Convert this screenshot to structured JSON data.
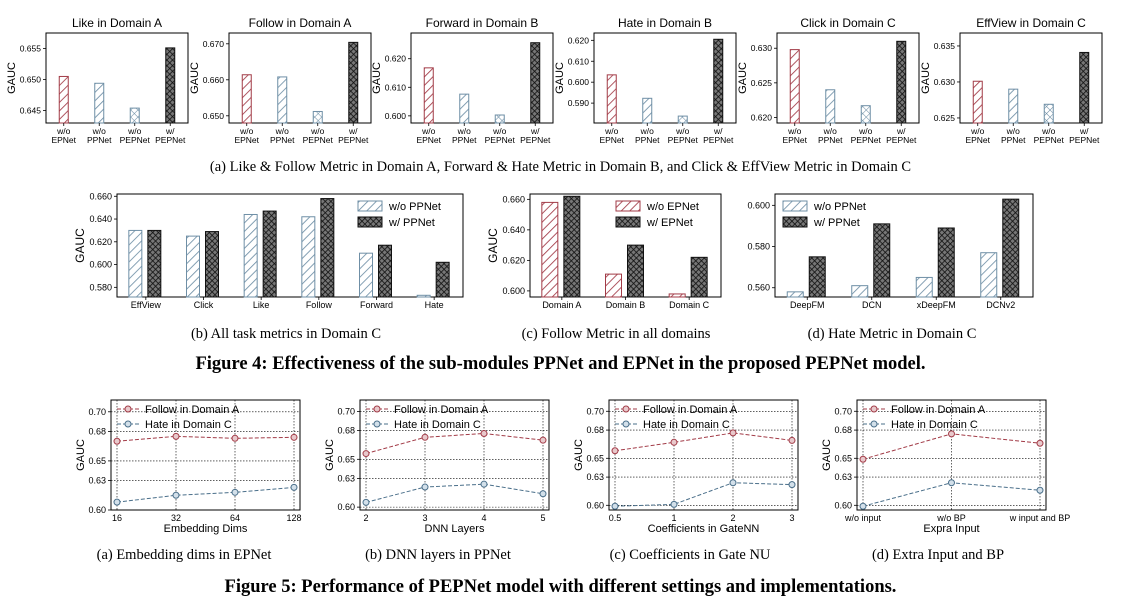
{
  "colors": {
    "red": "#a23b47",
    "blue": "#6f8fa6",
    "dark": "#222222",
    "line_red": "#a23b47",
    "line_blue": "#4a6f8a"
  },
  "captions": {
    "row1": "(a)  Like & Follow Metric in Domain A, Forward & Hate Metric in Domain B, and Click & EffView Metric in Domain C",
    "row2": [
      "(b)  All task metrics in Domain C",
      "(c)  Follow Metric in all domains",
      "(d)  Hate Metric in Domain C"
    ],
    "fig4": "Figure 4: Effectiveness of the sub-modules PPNet and EPNet in the proposed PEPNet model.",
    "row3": [
      "(a)  Embedding dims in EPNet",
      "(b)  DNN layers in PPNet",
      "(c)  Coefficients in Gate NU",
      "(d)  Extra Input and BP"
    ],
    "fig5": "Figure 5: Performance of PEPNet model with different settings and implementations."
  },
  "chart_data": [
    {
      "type": "bar",
      "title": "Like in Domain A",
      "ylabel": "GAUC",
      "categories": [
        [
          "w/o",
          "EPNet"
        ],
        [
          "w/o",
          "PPNet"
        ],
        [
          "w/o",
          "PEPNet"
        ],
        [
          "w/",
          "PEPNet"
        ]
      ],
      "values": [
        0.6505,
        0.6494,
        0.6454,
        0.6551
      ],
      "ylim": [
        0.643,
        0.6575
      ],
      "yticks": [
        0.645,
        0.65,
        0.655
      ],
      "ytick_labels": [
        "0.645",
        "0.650",
        "0.655"
      ],
      "styles": [
        "red",
        "blue",
        "check",
        "dark"
      ]
    },
    {
      "type": "bar",
      "title": "Follow in Domain A",
      "ylabel": "GAUC",
      "categories": [
        [
          "w/o",
          "EPNet"
        ],
        [
          "w/o",
          "PPNet"
        ],
        [
          "w/o",
          "PEPNet"
        ],
        [
          "w/",
          "PEPNet"
        ]
      ],
      "values": [
        0.6614,
        0.6608,
        0.6512,
        0.6704
      ],
      "ylim": [
        0.648,
        0.673
      ],
      "yticks": [
        0.65,
        0.66,
        0.67
      ],
      "ytick_labels": [
        "0.650",
        "0.660",
        "0.670"
      ],
      "styles": [
        "red",
        "blue",
        "check",
        "dark"
      ]
    },
    {
      "type": "bar",
      "title": "Forward in Domain B",
      "ylabel": "GAUC",
      "categories": [
        [
          "w/o",
          "EPNet"
        ],
        [
          "w/o",
          "PPNet"
        ],
        [
          "w/o",
          "PEPNet"
        ],
        [
          "w/",
          "PEPNet"
        ]
      ],
      "values": [
        0.6168,
        0.6076,
        0.6003,
        0.6256
      ],
      "ylim": [
        0.5975,
        0.629
      ],
      "yticks": [
        0.6,
        0.61,
        0.62
      ],
      "ytick_labels": [
        "0.600",
        "0.610",
        "0.620"
      ],
      "styles": [
        "red",
        "blue",
        "check",
        "dark"
      ]
    },
    {
      "type": "bar",
      "title": "Hate in Domain B",
      "ylabel": "GAUC",
      "categories": [
        [
          "w/o",
          "EPNet"
        ],
        [
          "w/o",
          "PPNet"
        ],
        [
          "w/o",
          "PEPNet"
        ],
        [
          "w/",
          "PEPNet"
        ]
      ],
      "values": [
        0.6035,
        0.5923,
        0.5838,
        0.6205
      ],
      "ylim": [
        0.5805,
        0.6235
      ],
      "yticks": [
        0.59,
        0.6,
        0.61,
        0.62
      ],
      "ytick_labels": [
        "0.590",
        "0.600",
        "0.610",
        "0.620"
      ],
      "styles": [
        "red",
        "blue",
        "check",
        "dark"
      ]
    },
    {
      "type": "bar",
      "title": "Click in Domain C",
      "ylabel": "GAUC",
      "categories": [
        [
          "w/o",
          "EPNet"
        ],
        [
          "w/o",
          "PPNet"
        ],
        [
          "w/o",
          "PEPNet"
        ],
        [
          "w/",
          "PEPNet"
        ]
      ],
      "values": [
        0.6298,
        0.624,
        0.6217,
        0.631
      ],
      "ylim": [
        0.6192,
        0.6322
      ],
      "yticks": [
        0.62,
        0.625,
        0.63
      ],
      "ytick_labels": [
        "0.620",
        "0.625",
        "0.630"
      ],
      "styles": [
        "red",
        "blue",
        "check",
        "dark"
      ]
    },
    {
      "type": "bar",
      "title": "EffView in Domain C",
      "ylabel": "GAUC",
      "categories": [
        [
          "w/o",
          "EPNet"
        ],
        [
          "w/o",
          "PPNet"
        ],
        [
          "w/o",
          "PEPNet"
        ],
        [
          "w/",
          "PEPNet"
        ]
      ],
      "values": [
        0.6301,
        0.629,
        0.6269,
        0.6341
      ],
      "ylim": [
        0.6243,
        0.6368
      ],
      "yticks": [
        0.625,
        0.63,
        0.635
      ],
      "ytick_labels": [
        "0.625",
        "0.630",
        "0.635"
      ],
      "styles": [
        "red",
        "blue",
        "check",
        "dark"
      ]
    },
    {
      "type": "bar",
      "ylabel": "GAUC",
      "legend": "top-right",
      "categories": [
        "EffView",
        "Click",
        "Like",
        "Follow",
        "Forward",
        "Hate"
      ],
      "series": [
        {
          "name": "w/o PPNet",
          "values": [
            0.63,
            0.625,
            0.644,
            0.642,
            0.61,
            0.573
          ],
          "style": "blue"
        },
        {
          "name": "w/ PPNet",
          "values": [
            0.63,
            0.629,
            0.647,
            0.658,
            0.617,
            0.602
          ],
          "style": "dark"
        }
      ],
      "ylim": [
        0.5715,
        0.662
      ],
      "yticks": [
        0.58,
        0.6,
        0.62,
        0.64,
        0.66
      ],
      "ytick_labels": [
        "0.580",
        "0.600",
        "0.620",
        "0.640",
        "0.660"
      ]
    },
    {
      "type": "bar",
      "ylabel": "GAUC",
      "legend": "top-right",
      "categories": [
        "Domain A",
        "Domain B",
        "Domain C"
      ],
      "series": [
        {
          "name": "w/o EPNet",
          "values": [
            0.658,
            0.611,
            0.598
          ],
          "style": "red"
        },
        {
          "name": "w/ EPNet",
          "values": [
            0.662,
            0.63,
            0.622
          ],
          "style": "dark"
        }
      ],
      "ylim": [
        0.596,
        0.6635
      ],
      "yticks": [
        0.6,
        0.62,
        0.64,
        0.66
      ],
      "ytick_labels": [
        "0.600",
        "0.620",
        "0.640",
        "0.660"
      ]
    },
    {
      "type": "bar",
      "legend": "top-left",
      "categories": [
        "DeepFM",
        "DCN",
        "xDeepFM",
        "DCNv2"
      ],
      "series": [
        {
          "name": "w/o PPNet",
          "values": [
            0.558,
            0.561,
            0.565,
            0.577
          ],
          "style": "blue"
        },
        {
          "name": "w/ PPNet",
          "values": [
            0.575,
            0.591,
            0.589,
            0.603
          ],
          "style": "dark"
        }
      ],
      "ylim": [
        0.5555,
        0.6055
      ],
      "yticks": [
        0.56,
        0.58,
        0.6
      ],
      "ytick_labels": [
        "0.560",
        "0.580",
        "0.600"
      ]
    },
    {
      "type": "line",
      "ylabel": "GAUC",
      "xlabel": "Embedding Dims",
      "legend": "top-left",
      "x": [
        "16",
        "32",
        "64",
        "128"
      ],
      "series": [
        {
          "name": "Follow in Domain A",
          "values": [
            0.67,
            0.675,
            0.673,
            0.674
          ],
          "style": "red"
        },
        {
          "name": "Hate in Domain C",
          "values": [
            0.608,
            0.615,
            0.618,
            0.623
          ],
          "style": "blue"
        }
      ],
      "ylim": [
        0.6,
        0.712
      ],
      "yticks": [
        0.6,
        0.63,
        0.65,
        0.68,
        0.7
      ],
      "ytick_labels": [
        "0.60",
        "0.63",
        "0.65",
        "0.68",
        "0.70"
      ]
    },
    {
      "type": "line",
      "ylabel": "GAUC",
      "xlabel": "DNN Layers",
      "legend": "top-left",
      "x": [
        "2",
        "3",
        "4",
        "5"
      ],
      "series": [
        {
          "name": "Follow in Domain A",
          "values": [
            0.656,
            0.673,
            0.677,
            0.67
          ],
          "style": "red"
        },
        {
          "name": "Hate in Domain C",
          "values": [
            0.605,
            0.621,
            0.624,
            0.614
          ],
          "style": "blue"
        }
      ],
      "ylim": [
        0.597,
        0.712
      ],
      "yticks": [
        0.6,
        0.63,
        0.65,
        0.68,
        0.7
      ],
      "ytick_labels": [
        "0.60",
        "0.63",
        "0.65",
        "0.68",
        "0.70"
      ]
    },
    {
      "type": "line",
      "ylabel": "GAUC",
      "xlabel": "Coefficients in GateNN",
      "legend": "top-left",
      "x": [
        "0.5",
        "1",
        "2",
        "3"
      ],
      "series": [
        {
          "name": "Follow in Domain A",
          "values": [
            0.658,
            0.667,
            0.677,
            0.669
          ],
          "style": "red"
        },
        {
          "name": "Hate in Domain C",
          "values": [
            0.599,
            0.601,
            0.624,
            0.622
          ],
          "style": "blue"
        }
      ],
      "ylim": [
        0.595,
        0.712
      ],
      "yticks": [
        0.6,
        0.63,
        0.65,
        0.68,
        0.7
      ],
      "ytick_labels": [
        "0.60",
        "0.63",
        "0.65",
        "0.68",
        "0.70"
      ]
    },
    {
      "type": "line",
      "ylabel": "GAUC",
      "xlabel": "Expra Input",
      "legend": "top-left",
      "x": [
        "w/o input",
        "w/o BP",
        "w input and BP"
      ],
      "series": [
        {
          "name": "Follow in Domain A",
          "values": [
            0.649,
            0.676,
            0.666
          ],
          "style": "red"
        },
        {
          "name": "Hate in Domain C",
          "values": [
            0.599,
            0.624,
            0.616
          ],
          "style": "blue"
        }
      ],
      "ylim": [
        0.595,
        0.712
      ],
      "yticks": [
        0.6,
        0.63,
        0.65,
        0.68,
        0.7
      ],
      "ytick_labels": [
        "0.60",
        "0.63",
        "0.65",
        "0.68",
        "0.70"
      ]
    }
  ]
}
